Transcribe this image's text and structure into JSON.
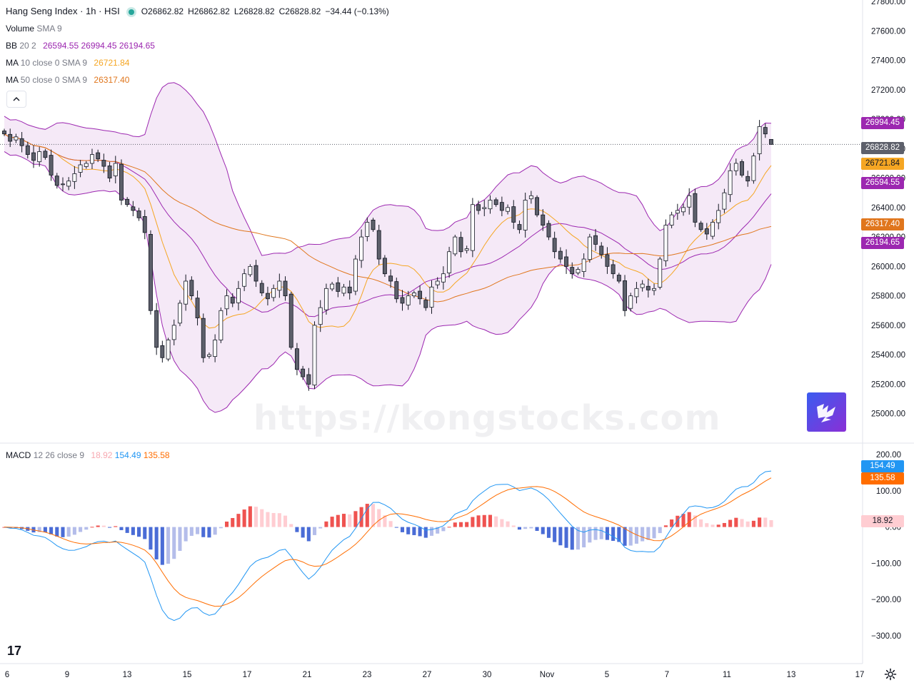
{
  "header": {
    "title": "Hang Seng Index · 1h · HSI",
    "ohlc": [
      {
        "label": "O",
        "value": "26862.82"
      },
      {
        "label": "H",
        "value": "26862.82"
      },
      {
        "label": "L",
        "value": "26828.82"
      },
      {
        "label": "C",
        "value": "26828.82"
      }
    ],
    "change": "−34.44 (−0.13%)"
  },
  "indicators": {
    "volume": {
      "name": "Volume",
      "params": "SMA 9"
    },
    "bb": {
      "name": "BB",
      "params": "20 2",
      "basis": "26594.55",
      "upper": "26994.45",
      "lower": "26194.65"
    },
    "ma10": {
      "name": "MA",
      "params": "10 close 0 SMA 9",
      "value": "26721.84"
    },
    "ma50": {
      "name": "MA",
      "params": "50 close 0 SMA 9",
      "value": "26317.40"
    },
    "macd": {
      "name": "MACD",
      "params": "12 26 close 9",
      "hist": "18.92",
      "macd": "154.49",
      "signal": "135.58"
    }
  },
  "price_tags": {
    "bb_upper": "26994.45",
    "last": "26828.82",
    "ma10": "26721.84",
    "bb_basis": "26594.55",
    "ma50": "26317.40",
    "bb_lower": "26194.65",
    "macd": "154.49",
    "signal": "135.58",
    "hist": "18.92"
  },
  "watermark": "https://kongstocks.com",
  "tv_logo": "17",
  "colors": {
    "up": "#ffffff",
    "down": "#5d606b",
    "wick": "#131722",
    "bb_line": "#9c27b0",
    "bb_fill": "rgba(156,39,176,0.10)",
    "ma10": "#f5a623",
    "ma50": "#e0761d",
    "macd": "#2196f3",
    "signal": "#ff6d00",
    "hist_pos_strong": "#ef5350",
    "hist_pos_weak": "#ffcdd2",
    "hist_neg_strong": "#4a6cd6",
    "hist_neg_weak": "#b4bdea",
    "grid": "#f0f3fa",
    "axis_text": "#131722"
  },
  "chart_data": [
    {
      "type": "candlestick",
      "title": "Hang Seng Index · 1h · HSI",
      "x_tick_labels": [
        "6",
        "9",
        "13",
        "15",
        "17",
        "21",
        "23",
        "27",
        "30",
        "Nov",
        "5",
        "7",
        "11",
        "13",
        "17"
      ],
      "y_tick_labels": [
        "27800.00",
        "27600.00",
        "27400.00",
        "27200.00",
        "27000.00",
        "26800.00",
        "26600.00",
        "26400.00",
        "26200.00",
        "26000.00",
        "25800.00",
        "25600.00",
        "25400.00",
        "25200.00",
        "25000.00"
      ],
      "ylim": [
        24950,
        27800
      ],
      "grid": false,
      "close_estimates": [
        26900,
        26850,
        26880,
        26820,
        26760,
        26720,
        26780,
        26740,
        26620,
        26550,
        26560,
        26580,
        26630,
        26690,
        26700,
        26760,
        26730,
        26680,
        26600,
        26700,
        26450,
        26420,
        26380,
        26330,
        26230,
        25700,
        25450,
        25380,
        25500,
        25600,
        25750,
        25900,
        25800,
        25650,
        25380,
        25400,
        25500,
        25700,
        25800,
        25750,
        25850,
        25950,
        26000,
        25900,
        25820,
        25780,
        25850,
        25900,
        25800,
        25450,
        25300,
        25250,
        25200,
        25600,
        25720,
        25850,
        25880,
        25830,
        25860,
        25820,
        26050,
        26200,
        26300,
        26250,
        26050,
        25950,
        25900,
        25780,
        25750,
        25800,
        25820,
        25780,
        25720,
        25860,
        25900,
        25950,
        26100,
        26200,
        26100,
        26120,
        26420,
        26380,
        26400,
        26450,
        26420,
        26380,
        26400,
        26300,
        26250,
        26450,
        26480,
        26350,
        26280,
        26200,
        26100,
        26050,
        26000,
        25950,
        25980,
        26050,
        26200,
        26150,
        26080,
        26000,
        25950,
        25900,
        25700,
        25800,
        25850,
        25880,
        25840,
        25850,
        26050,
        26280,
        26350,
        26380,
        26400,
        26480,
        26300,
        26250,
        26220,
        26300,
        26380,
        26500,
        26650,
        26700,
        26620,
        26580,
        26750,
        26950,
        26900,
        26829
      ]
    },
    {
      "type": "bar",
      "title": "MACD 12 26 close 9",
      "y_tick_labels": [
        "200.00",
        "100.00",
        "0.00",
        "−100.00",
        "−200.00",
        "−300.00"
      ],
      "ylim": [
        -320,
        205
      ],
      "series": [
        {
          "name": "MACD",
          "last": 154.49
        },
        {
          "name": "Signal",
          "last": 135.58
        },
        {
          "name": "Histogram",
          "last": 18.92
        }
      ]
    }
  ]
}
